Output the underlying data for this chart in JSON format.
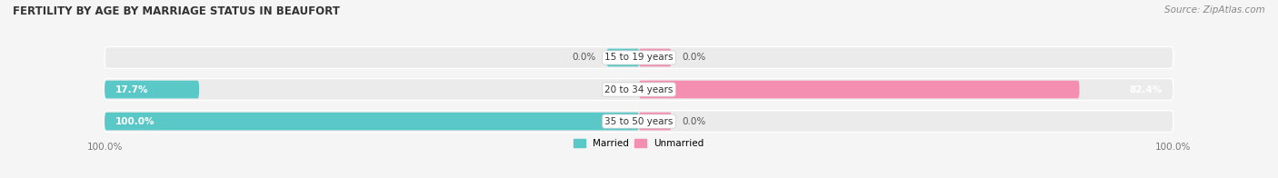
{
  "title": "FERTILITY BY AGE BY MARRIAGE STATUS IN BEAUFORT",
  "source": "Source: ZipAtlas.com",
  "categories": [
    "15 to 19 years",
    "20 to 34 years",
    "35 to 50 years"
  ],
  "married_values": [
    0.0,
    17.7,
    100.0
  ],
  "unmarried_values": [
    0.0,
    82.4,
    0.0
  ],
  "married_color": "#5BC8C8",
  "unmarried_color": "#F48FB1",
  "bar_bg_color": "#EBEBEB",
  "bar_height": 0.68,
  "bar_gap": 0.06,
  "title_fontsize": 8.5,
  "label_fontsize": 7.5,
  "tick_fontsize": 7.5,
  "source_fontsize": 7.5,
  "figsize": [
    14.06,
    1.96
  ],
  "dpi": 100,
  "bg_color": "#F5F5F5"
}
